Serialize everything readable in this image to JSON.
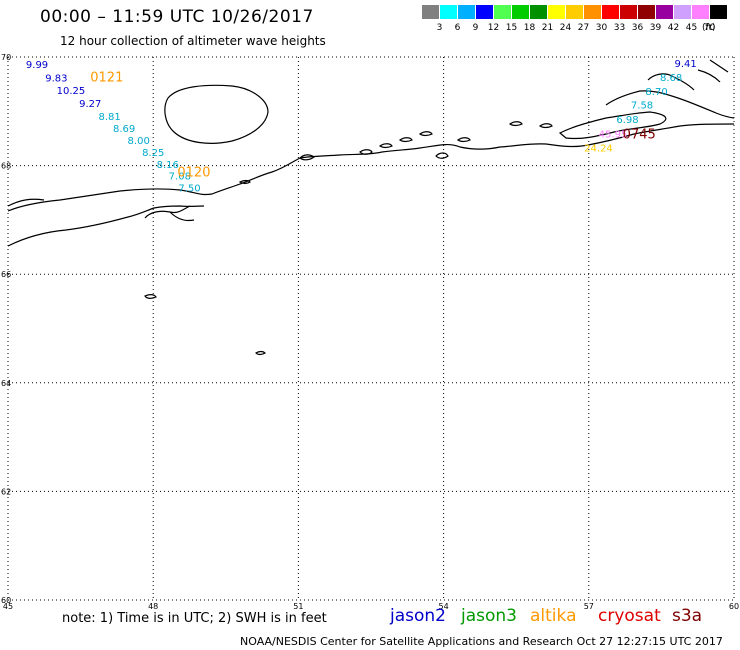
{
  "header": {
    "title": "00:00 – 11:59 UTC 10/26/2017",
    "subtitle": "12 hour collection of altimeter wave heights"
  },
  "legend": {
    "unit": "(ft)",
    "bins": [
      {
        "label": "3",
        "color": "#808080"
      },
      {
        "label": "6",
        "color": "#00ffff"
      },
      {
        "label": "9",
        "color": "#00b0ff"
      },
      {
        "label": "12",
        "color": "#0000ff"
      },
      {
        "label": "15",
        "color": "#50ff50"
      },
      {
        "label": "18",
        "color": "#00cc00"
      },
      {
        "label": "21",
        "color": "#009000"
      },
      {
        "label": "24",
        "color": "#ffff00"
      },
      {
        "label": "27",
        "color": "#ffcc00"
      },
      {
        "label": "30",
        "color": "#ff9000"
      },
      {
        "label": "33",
        "color": "#ff0000"
      },
      {
        "label": "36",
        "color": "#cc0000"
      },
      {
        "label": "39",
        "color": "#900000"
      },
      {
        "label": "42",
        "color": "#9900a0"
      },
      {
        "label": "45",
        "color": "#d0a0ff"
      },
      {
        "label": "70",
        "color": "#ff80ff"
      },
      {
        "label": "",
        "color": "#000000"
      }
    ]
  },
  "map": {
    "lon_range": [
      45,
      60
    ],
    "lat_range": [
      60,
      70
    ],
    "lon_ticks": [
      "45",
      "48",
      "51",
      "54",
      "57",
      "60"
    ],
    "lat_ticks": [
      "70",
      "68",
      "66",
      "64",
      "62",
      "60"
    ],
    "track_west": {
      "time_labels": [
        {
          "text": "0121",
          "lon": 46.7,
          "lat": 69.55,
          "color": "#ff9900"
        },
        {
          "text": "0120",
          "lon": 48.5,
          "lat": 67.8,
          "color": "#ff9900"
        }
      ],
      "points": [
        {
          "swh": "9.99",
          "lon": 45.6,
          "lat": 69.8,
          "color": "#0000cc"
        },
        {
          "swh": "9.83",
          "lon": 46.0,
          "lat": 69.55,
          "color": "#0000cc"
        },
        {
          "swh": "10.25",
          "lon": 46.3,
          "lat": 69.32,
          "color": "#0000cc"
        },
        {
          "swh": "9.27",
          "lon": 46.7,
          "lat": 69.08,
          "color": "#0000cc"
        },
        {
          "swh": "8.81",
          "lon": 47.1,
          "lat": 68.84,
          "color": "#00aacc"
        },
        {
          "swh": "8.69",
          "lon": 47.4,
          "lat": 68.62,
          "color": "#00aacc"
        },
        {
          "swh": "8.00",
          "lon": 47.7,
          "lat": 68.4,
          "color": "#00aacc"
        },
        {
          "swh": "8.25",
          "lon": 48.0,
          "lat": 68.18,
          "color": "#00aacc"
        },
        {
          "swh": "8.16",
          "lon": 48.3,
          "lat": 67.96,
          "color": "#00aacc"
        },
        {
          "swh": "7.08",
          "lon": 48.55,
          "lat": 67.74,
          "color": "#00aacc"
        },
        {
          "swh": "7.50",
          "lon": 48.75,
          "lat": 67.52,
          "color": "#00aacc"
        }
      ]
    },
    "track_east": {
      "time_labels": [
        {
          "text": "0745",
          "lon": 57.7,
          "lat": 68.5,
          "color": "#800000"
        }
      ],
      "points": [
        {
          "swh": "9.41",
          "lon": 59.0,
          "lat": 69.82,
          "color": "#0000cc"
        },
        {
          "swh": "8.68",
          "lon": 58.7,
          "lat": 69.56,
          "color": "#00aacc"
        },
        {
          "swh": "8.70",
          "lon": 58.4,
          "lat": 69.3,
          "color": "#00aacc"
        },
        {
          "swh": "7.58",
          "lon": 58.1,
          "lat": 69.05,
          "color": "#00aacc"
        },
        {
          "swh": "6.98",
          "lon": 57.8,
          "lat": 68.78,
          "color": "#00aacc"
        },
        {
          "swh": "45.95",
          "lon": 57.5,
          "lat": 68.52,
          "color": "#ff80ff"
        },
        {
          "swh": "24.24",
          "lon": 57.2,
          "lat": 68.26,
          "color": "#ffcc00"
        }
      ]
    }
  },
  "footer": {
    "note": "note:  1) Time is in UTC;  2) SWH is in feet",
    "satellites": [
      {
        "name": "jason2",
        "color": "#0000cc"
      },
      {
        "name": "jason3",
        "color": "#009900"
      },
      {
        "name": "altika",
        "color": "#ff9900"
      },
      {
        "name": "cryosat",
        "color": "#dd0000"
      },
      {
        "name": "s3a",
        "color": "#800000"
      }
    ],
    "credit": "NOAA/NESDIS Center for Satellite Applications and Research     Oct 27 12:27:15 UTC 2017"
  }
}
